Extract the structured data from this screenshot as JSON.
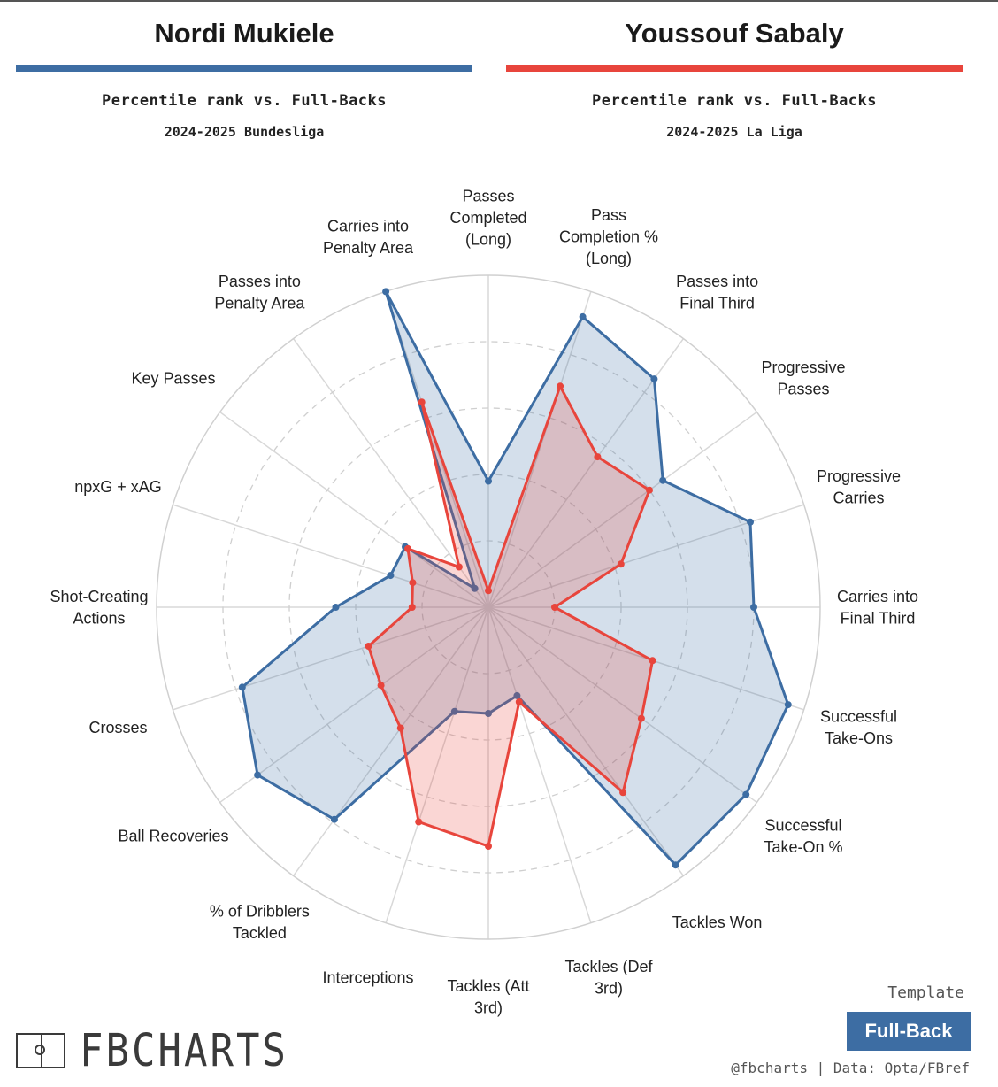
{
  "players": [
    {
      "name": "Nordi Mukiele",
      "subtitle": "Percentile rank vs. Full-Backs",
      "league": "2024-2025 Bundesliga",
      "color": "#3d6da3"
    },
    {
      "name": "Youssouf Sabaly",
      "subtitle": "Percentile rank vs. Full-Backs",
      "league": "2024-2025 La Liga",
      "color": "#e8453c"
    }
  ],
  "chart_data": {
    "type": "radar",
    "scale": [
      0,
      100
    ],
    "grid": true,
    "categories": [
      [
        "Passes",
        "Completed",
        "(Long)"
      ],
      [
        "Pass",
        "Completion %",
        "(Long)"
      ],
      [
        "Passes into",
        "Final Third"
      ],
      [
        "Progressive",
        "Passes"
      ],
      [
        "Progressive",
        "Carries"
      ],
      [
        "Carries into",
        "Final Third"
      ],
      [
        "Successful",
        "Take-Ons"
      ],
      [
        "Successful",
        "Take-On %"
      ],
      [
        "Tackles Won"
      ],
      [
        "Tackles (Def",
        "3rd)"
      ],
      [
        "Tackles (Att",
        "3rd)"
      ],
      [
        "Interceptions"
      ],
      [
        "% of Dribblers",
        "Tackled"
      ],
      [
        "Ball Recoveries"
      ],
      [
        "Crosses"
      ],
      [
        "Shot-Creating",
        "Actions"
      ],
      [
        "npxG + xAG"
      ],
      [
        "Key Passes"
      ],
      [
        "Passes into",
        "Penalty Area"
      ],
      [
        "Carries into",
        "Penalty Area"
      ]
    ],
    "series": [
      {
        "name": "Nordi Mukiele",
        "color": "#3d6da3",
        "values": [
          38,
          92,
          85,
          65,
          83,
          80,
          95,
          96,
          96,
          28,
          32,
          33,
          79,
          86,
          78,
          46,
          31,
          31,
          7,
          100
        ]
      },
      {
        "name": "Youssouf Sabaly",
        "color": "#e8453c",
        "values": [
          5,
          70,
          56,
          60,
          42,
          20,
          52,
          57,
          69,
          30,
          72,
          68,
          45,
          40,
          38,
          23,
          24,
          30,
          15,
          65
        ]
      }
    ]
  },
  "footer": {
    "logo": "FBCHARTS",
    "template_label": "Template",
    "template_value": "Full-Back",
    "credit": "@fbcharts | Data: Opta/FBref"
  }
}
